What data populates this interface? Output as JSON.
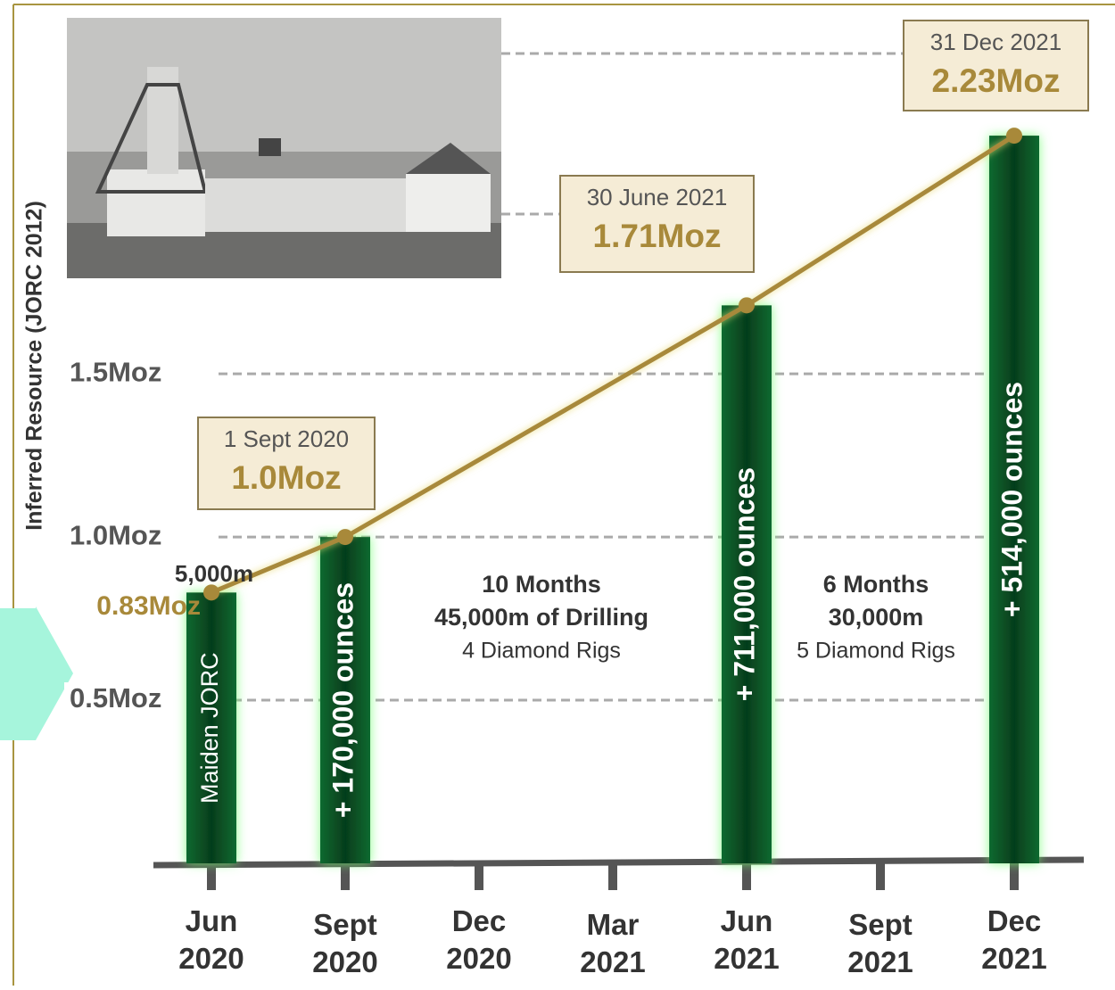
{
  "chart_data": {
    "type": "bar_line",
    "y_axis_label": "Inferred Resource (JORC 2012)",
    "categories": [
      "Jun 2020",
      "Sept 2020",
      "Dec 2020",
      "Mar 2021",
      "Jun 2021",
      "Sept 2021",
      "Dec 2021"
    ],
    "ylim": [
      0,
      2.55
    ],
    "yticks": [
      {
        "value": 0.5,
        "label": "0.5Moz"
      },
      {
        "value": 1.0,
        "label": "1.0Moz"
      },
      {
        "value": 1.5,
        "label": "1.5Moz"
      }
    ],
    "grid": true,
    "series": [
      {
        "name": "Inferred Resource",
        "color": "#a8893a",
        "values": [
          0.83,
          1.0,
          null,
          null,
          1.71,
          null,
          2.23
        ],
        "value_labels": [
          "0.83Moz",
          "1.0Moz",
          null,
          null,
          "1.71Moz",
          null,
          "2.23Moz"
        ],
        "date_labels": [
          null,
          "1 Sept 2020",
          null,
          null,
          "30 June 2021",
          null,
          "31 Dec 2021"
        ],
        "bar_labels": [
          {
            "text": "Maiden JORC",
            "bold": false
          },
          {
            "text": "+ 170,000 ounces",
            "bold": true
          },
          null,
          null,
          {
            "text": "+ 711,000 ounces",
            "bold": true
          },
          null,
          {
            "text": "+ 514,000 ounces",
            "bold": true
          }
        ]
      }
    ],
    "bar_color": "#0c5a2c",
    "annotations": [
      {
        "at": 0,
        "text": "5,000m"
      },
      {
        "at": 2.5,
        "title": "10 Months",
        "detail": "45,000m of Drilling",
        "note": "4 Diamond Rigs"
      },
      {
        "at": 5,
        "title": "6 Months",
        "detail": "30,000m",
        "note": "5 Diamond Rigs"
      }
    ]
  }
}
